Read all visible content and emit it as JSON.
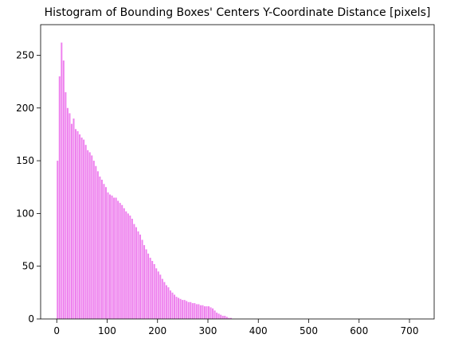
{
  "chart_data": {
    "type": "histogram",
    "title": "Histogram of Bounding Boxes' Centers Y-Coordinate Distance [pixels]",
    "bins": [
      0,
      4,
      8,
      12,
      16,
      20,
      24,
      28,
      32,
      36,
      40,
      44,
      48,
      52,
      56,
      60,
      64,
      68,
      72,
      76,
      80,
      84,
      88,
      92,
      96,
      100,
      104,
      108,
      112,
      116,
      120,
      124,
      128,
      132,
      136,
      140,
      144,
      148,
      152,
      156,
      160,
      164,
      168,
      172,
      176,
      180,
      184,
      188,
      192,
      196,
      200,
      204,
      208,
      212,
      216,
      220,
      224,
      228,
      232,
      236,
      240,
      244,
      248,
      252,
      256,
      260,
      264,
      268,
      272,
      276,
      280,
      284,
      288,
      292,
      296,
      300,
      304,
      308,
      312,
      316,
      320,
      324,
      328,
      332,
      336,
      340,
      344,
      348,
      716
    ],
    "values": [
      150,
      230,
      262,
      245,
      215,
      200,
      195,
      185,
      190,
      180,
      178,
      175,
      172,
      170,
      165,
      160,
      158,
      155,
      150,
      145,
      140,
      135,
      132,
      128,
      125,
      120,
      118,
      117,
      115,
      115,
      112,
      110,
      108,
      105,
      102,
      100,
      98,
      95,
      90,
      87,
      83,
      80,
      75,
      70,
      66,
      62,
      58,
      55,
      52,
      48,
      45,
      42,
      38,
      35,
      32,
      30,
      27,
      25,
      23,
      21,
      20,
      19,
      18,
      18,
      17,
      16,
      16,
      15,
      15,
      14,
      14,
      13,
      13,
      12,
      12,
      12,
      11,
      10,
      8,
      6,
      5,
      4,
      3,
      3,
      2,
      1,
      1,
      0
    ],
    "color": "#ee82ee",
    "xlim": [
      -32,
      749
    ],
    "xticks": [
      0,
      100,
      200,
      300,
      400,
      500,
      600,
      700
    ],
    "ylim": [
      0,
      279
    ],
    "yticks": [
      0,
      50,
      100,
      150,
      200,
      250
    ]
  }
}
